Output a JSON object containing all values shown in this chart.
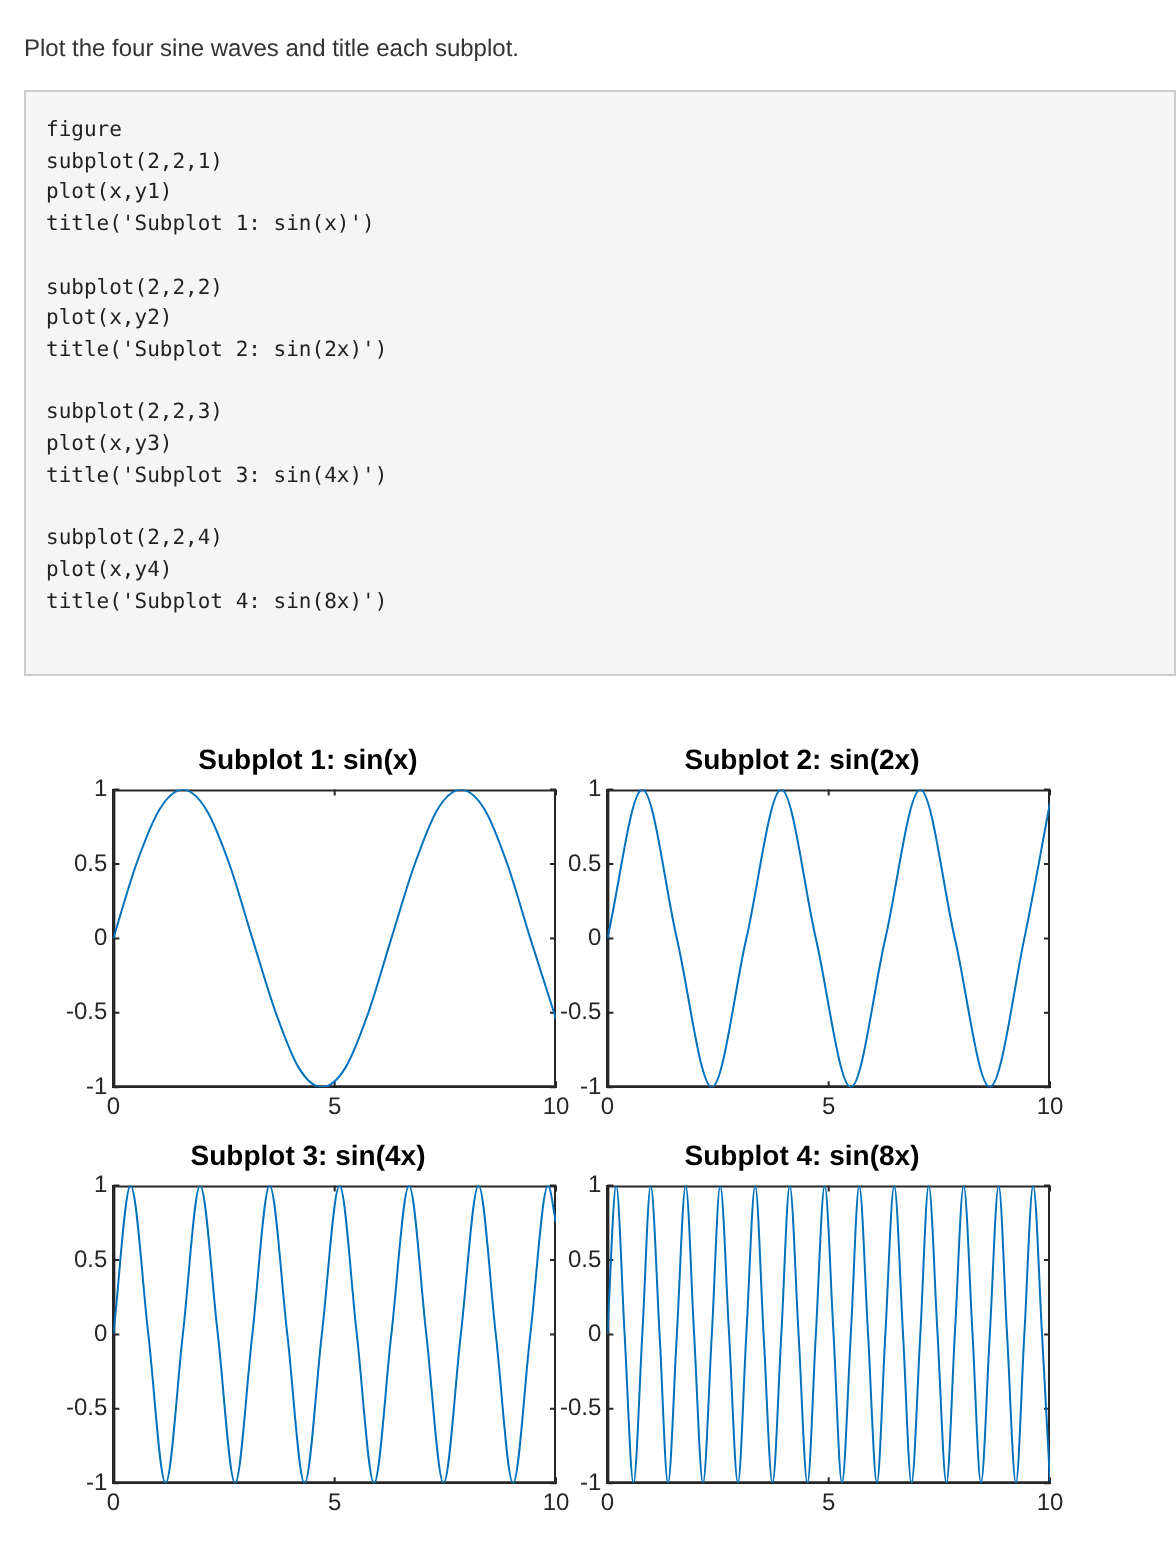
{
  "chart_data": [
    {
      "type": "line",
      "title": "Subplot 1: sin(x)",
      "annotations": [
        "Plot the four sine waves and title each subplot.",
        "figure\nsubplot(2,2,1)\nplot(x,y1)\ntitle('Subplot 1: sin(x)')\n\nsubplot(2,2,2)\nplot(x,y2)\ntitle('Subplot 2: sin(2x)')\n\nsubplot(2,2,3)\nplot(x,y3)\ntitle('Subplot 3: sin(4x)')\n\nsubplot(2,2,4)\nplot(x,y4)\ntitle('Subplot 4: sin(8x)')"
      ],
      "xlim": [
        0,
        10
      ],
      "xticks": [
        0,
        5,
        10
      ],
      "ylim": [
        -1,
        1
      ],
      "yticks": [
        -1,
        -0.5,
        0,
        0.5,
        1
      ],
      "grid": false,
      "legend": false,
      "marker": "none",
      "line_style": "solid",
      "series": [
        {
          "color": "#0072bd",
          "x": [
            0,
            0.52,
            1.05,
            1.57,
            2.09,
            2.62,
            3.14,
            3.67,
            4.19,
            4.71,
            5.24,
            5.76,
            6.28,
            6.81,
            7.33,
            7.85,
            8.38,
            8.9,
            9.42,
            10
          ],
          "values": [
            0,
            0.5,
            0.87,
            1,
            0.87,
            0.5,
            0,
            -0.5,
            -0.87,
            -1,
            -0.87,
            -0.5,
            0,
            0.5,
            0.87,
            1,
            0.87,
            0.5,
            0,
            -0.54
          ]
        }
      ]
    },
    {
      "type": "line",
      "title": "Subplot 2: sin(2x)",
      "xlim": [
        0,
        10
      ],
      "xticks": [
        0,
        5,
        10
      ],
      "ylim": [
        -1,
        1
      ],
      "yticks": [
        -1,
        -0.5,
        0,
        0.5,
        1
      ],
      "grid": false,
      "legend": false,
      "marker": "none",
      "line_style": "solid",
      "series": [
        {
          "color": "#0072bd",
          "x": [
            0,
            0.79,
            1.57,
            2.36,
            3.14,
            3.93,
            4.71,
            5.5,
            6.28,
            7.07,
            7.85,
            8.64,
            9.42,
            10
          ],
          "values": [
            0,
            1,
            0,
            -1,
            0,
            1,
            0,
            -1,
            0,
            1,
            0,
            -1,
            0,
            0.91
          ]
        }
      ]
    },
    {
      "type": "line",
      "title": "Subplot 3: sin(4x)",
      "xlim": [
        0,
        10
      ],
      "xticks": [
        0,
        5,
        10
      ],
      "ylim": [
        -1,
        1
      ],
      "yticks": [
        -1,
        -0.5,
        0,
        0.5,
        1
      ],
      "grid": false,
      "legend": false,
      "marker": "none",
      "line_style": "solid",
      "series": [
        {
          "color": "#0072bd",
          "x": [
            0,
            0.39,
            0.79,
            1.18,
            1.57,
            1.96,
            2.36,
            2.75,
            3.14,
            3.53,
            3.93,
            4.32,
            4.71,
            5.11,
            5.5,
            5.89,
            6.28,
            6.68,
            7.07,
            7.46,
            7.85,
            8.25,
            8.64,
            9.03,
            9.42,
            9.82,
            10
          ],
          "values": [
            0,
            1,
            0,
            -1,
            0,
            1,
            0,
            -1,
            0,
            1,
            0,
            -1,
            0,
            1,
            0,
            -1,
            0,
            1,
            0,
            -1,
            0,
            1,
            0,
            -1,
            0,
            1,
            0.75
          ]
        }
      ]
    },
    {
      "type": "line",
      "title": "Subplot 4: sin(8x)",
      "xlim": [
        0,
        10
      ],
      "xticks": [
        0,
        5,
        10
      ],
      "ylim": [
        -1,
        1
      ],
      "yticks": [
        -1,
        -0.5,
        0,
        0.5,
        1
      ],
      "grid": false,
      "legend": false,
      "marker": "none",
      "line_style": "solid",
      "series": [
        {
          "color": "#0072bd",
          "x": [
            0,
            0.2,
            0.39,
            0.59,
            0.79,
            0.98,
            1.18,
            1.37,
            1.57,
            1.77,
            1.96,
            2.16,
            2.36,
            2.55,
            2.75,
            2.95,
            3.14,
            3.34,
            3.53,
            3.73,
            3.93,
            4.12,
            4.32,
            4.52,
            4.71,
            4.91,
            5.11,
            5.3,
            5.5,
            5.69,
            5.89,
            6.09,
            6.28,
            6.48,
            6.68,
            6.87,
            7.07,
            7.26,
            7.46,
            7.66,
            7.85,
            8.05,
            8.25,
            8.44,
            8.64,
            8.84,
            9.03,
            9.23,
            9.42,
            9.62,
            9.82,
            10
          ],
          "values": [
            0,
            1,
            0,
            -1,
            0,
            1,
            0,
            -1,
            0,
            1,
            0,
            -1,
            0,
            1,
            0,
            -1,
            0,
            1,
            0,
            -1,
            0,
            1,
            0,
            -1,
            0,
            1,
            0,
            -1,
            0,
            1,
            0,
            -1,
            0,
            1,
            0,
            -1,
            0,
            1,
            0,
            -1,
            0,
            1,
            0,
            -1,
            0,
            1,
            0,
            -1,
            0,
            1,
            0,
            -0.99
          ]
        }
      ]
    }
  ]
}
